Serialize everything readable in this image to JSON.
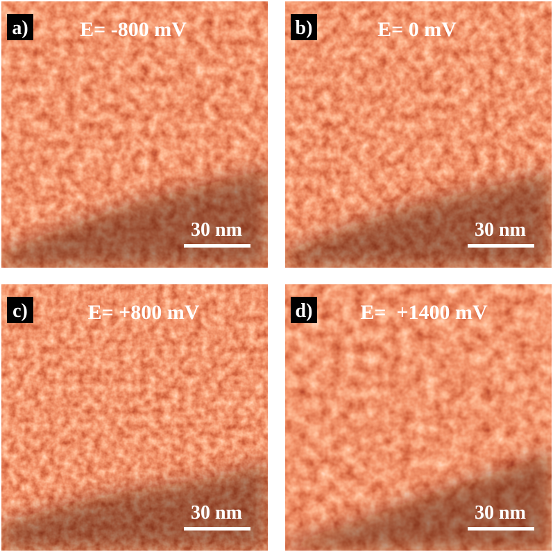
{
  "panels": [
    {
      "label": "a)",
      "potential": "E= -800 mV",
      "scale_bar": "30 nm"
    },
    {
      "label": "b)",
      "potential": "E= 0 mV",
      "scale_bar": "30 nm"
    },
    {
      "label": "c)",
      "potential": "E= +800 mV",
      "scale_bar": "30 nm"
    },
    {
      "label": "d)",
      "potential": "E=  +1400 mV",
      "scale_bar": "30 nm"
    }
  ]
}
